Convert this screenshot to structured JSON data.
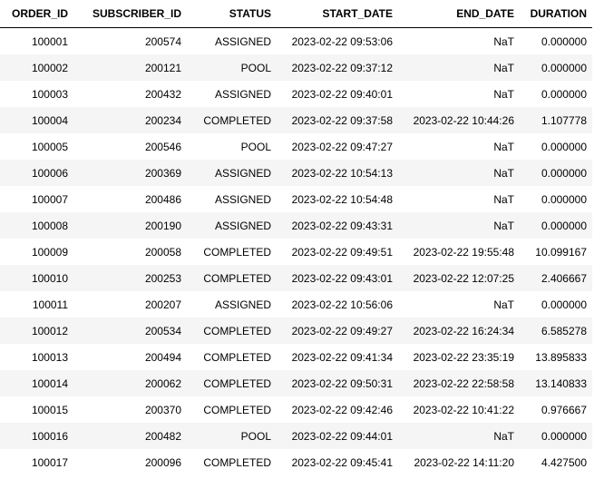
{
  "table": {
    "columns": [
      "ORDER_ID",
      "SUBSCRIBER_ID",
      "STATUS",
      "START_DATE",
      "END_DATE",
      "DURATION"
    ],
    "rows": [
      [
        "100001",
        "200574",
        "ASSIGNED",
        "2023-02-22 09:53:06",
        "NaT",
        "0.000000"
      ],
      [
        "100002",
        "200121",
        "POOL",
        "2023-02-22 09:37:12",
        "NaT",
        "0.000000"
      ],
      [
        "100003",
        "200432",
        "ASSIGNED",
        "2023-02-22 09:40:01",
        "NaT",
        "0.000000"
      ],
      [
        "100004",
        "200234",
        "COMPLETED",
        "2023-02-22 09:37:58",
        "2023-02-22 10:44:26",
        "1.107778"
      ],
      [
        "100005",
        "200546",
        "POOL",
        "2023-02-22 09:47:27",
        "NaT",
        "0.000000"
      ],
      [
        "100006",
        "200369",
        "ASSIGNED",
        "2023-02-22 10:54:13",
        "NaT",
        "0.000000"
      ],
      [
        "100007",
        "200486",
        "ASSIGNED",
        "2023-02-22 10:54:48",
        "NaT",
        "0.000000"
      ],
      [
        "100008",
        "200190",
        "ASSIGNED",
        "2023-02-22 09:43:31",
        "NaT",
        "0.000000"
      ],
      [
        "100009",
        "200058",
        "COMPLETED",
        "2023-02-22 09:49:51",
        "2023-02-22 19:55:48",
        "10.099167"
      ],
      [
        "100010",
        "200253",
        "COMPLETED",
        "2023-02-22 09:43:01",
        "2023-02-22 12:07:25",
        "2.406667"
      ],
      [
        "100011",
        "200207",
        "ASSIGNED",
        "2023-02-22 10:56:06",
        "NaT",
        "0.000000"
      ],
      [
        "100012",
        "200534",
        "COMPLETED",
        "2023-02-22 09:49:27",
        "2023-02-22 16:24:34",
        "6.585278"
      ],
      [
        "100013",
        "200494",
        "COMPLETED",
        "2023-02-22 09:41:34",
        "2023-02-22 23:35:19",
        "13.895833"
      ],
      [
        "100014",
        "200062",
        "COMPLETED",
        "2023-02-22 09:50:31",
        "2023-02-22 22:58:58",
        "13.140833"
      ],
      [
        "100015",
        "200370",
        "COMPLETED",
        "2023-02-22 09:42:46",
        "2023-02-22 10:41:22",
        "0.976667"
      ],
      [
        "100016",
        "200482",
        "POOL",
        "2023-02-22 09:44:01",
        "NaT",
        "0.000000"
      ],
      [
        "100017",
        "200096",
        "COMPLETED",
        "2023-02-22 09:45:41",
        "2023-02-22 14:11:20",
        "4.427500"
      ]
    ]
  }
}
